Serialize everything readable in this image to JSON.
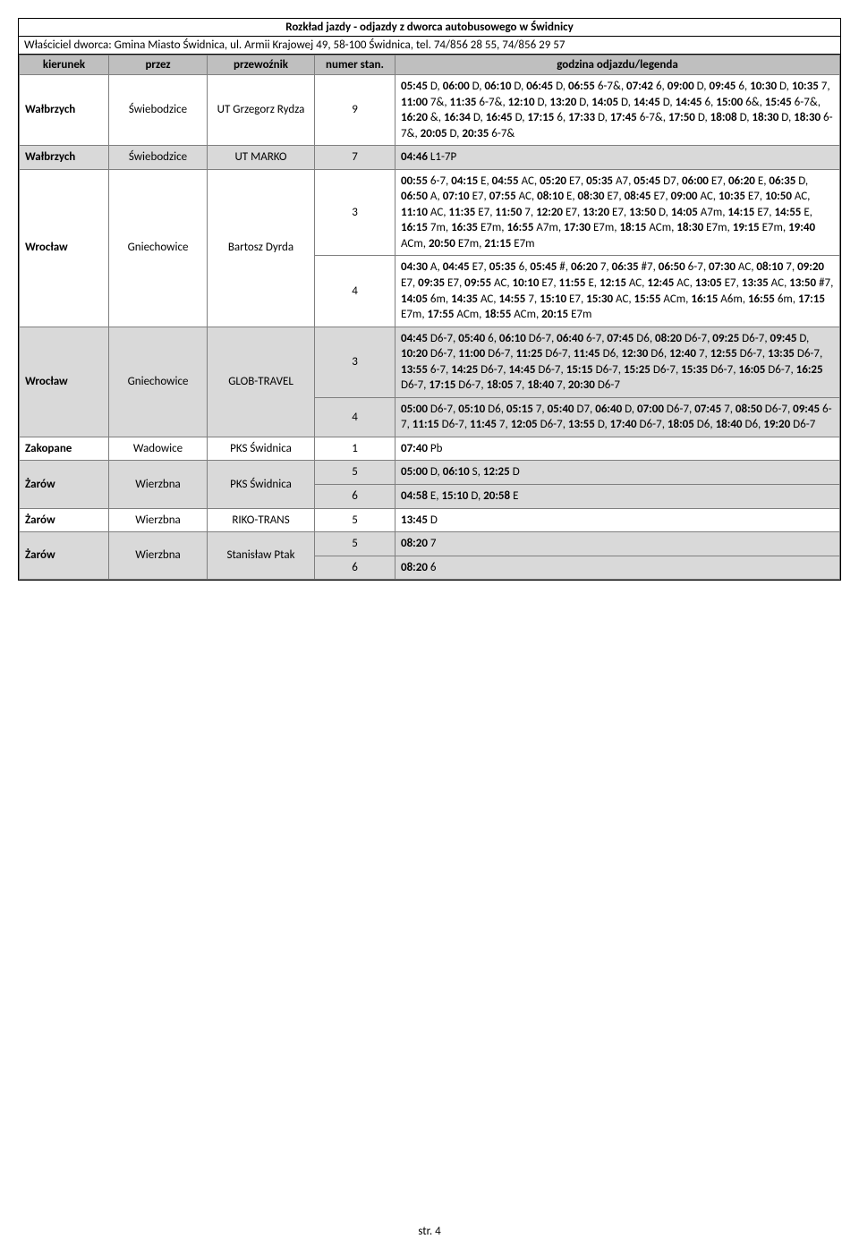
{
  "title": "Rozkład jazdy - odjazdy z dworca autobusowego w Świdnicy",
  "subtitle": "Właściciel dworca: Gmina Miasto Świdnica, ul. Armii Krajowej 49, 58-100 Świdnica, tel. 74/856 28 55, 74/856 29 57",
  "headers": {
    "c1": "kierunek",
    "c2": "przez",
    "c3": "przewoźnik",
    "c4": "numer stan.",
    "c5": "godzina odjazdu/legenda"
  },
  "rows": [
    {
      "shaded": false,
      "kierunek": "Wałbrzych",
      "przez": "Świebodzice",
      "przewoznik": "UT Grzegorz Rydza",
      "stan": "9",
      "times": [
        {
          "t": "05:45",
          "l": " D, "
        },
        {
          "t": "06:00",
          "l": " D, "
        },
        {
          "t": "06:10",
          "l": " D, "
        },
        {
          "t": "06:45",
          "l": " D, "
        },
        {
          "t": "06:55",
          "l": " 6-7&, "
        },
        {
          "t": "07:42",
          "l": " 6, "
        },
        {
          "t": "09:00",
          "l": " D, "
        },
        {
          "t": "09:45",
          "l": " 6, "
        },
        {
          "t": "10:30",
          "l": " D, "
        },
        {
          "t": "10:35",
          "l": " 7, "
        },
        {
          "t": "11:00",
          "l": " 7&, "
        },
        {
          "t": "11:35",
          "l": " 6-7&, "
        },
        {
          "t": "12:10",
          "l": " D, "
        },
        {
          "t": "13:20",
          "l": " D, "
        },
        {
          "t": "14:05",
          "l": " D, "
        },
        {
          "t": "14:45",
          "l": " D, "
        },
        {
          "t": "14:45",
          "l": " 6, "
        },
        {
          "t": "15:00",
          "l": " 6&, "
        },
        {
          "t": "15:45",
          "l": " 6-7&, "
        },
        {
          "t": "16:20",
          "l": " &, "
        },
        {
          "t": "16:34",
          "l": " D, "
        },
        {
          "t": "16:45",
          "l": " D, "
        },
        {
          "t": "17:15",
          "l": " 6, "
        },
        {
          "t": "17:33",
          "l": " D, "
        },
        {
          "t": "17:45",
          "l": " 6-7&, "
        },
        {
          "t": "17:50",
          "l": " D, "
        },
        {
          "t": "18:08",
          "l": " D, "
        },
        {
          "t": "18:30",
          "l": " D, "
        },
        {
          "t": "18:30",
          "l": " 6-7&, "
        },
        {
          "t": "20:05",
          "l": " D, "
        },
        {
          "t": "20:35",
          "l": " 6-7&"
        }
      ]
    },
    {
      "shaded": true,
      "kierunek": "Wałbrzych",
      "przez": "Świebodzice",
      "przewoznik": "UT MARKO",
      "stan": "7",
      "times": [
        {
          "t": "04:46",
          "l": " L1-7P"
        }
      ]
    },
    {
      "shaded": false,
      "groupStart": true,
      "groupRows": 2,
      "kierunek": "Wrocław",
      "przez": "Gniechowice",
      "przewoznik": "Bartosz Dyrda",
      "stan": "3",
      "times": [
        {
          "t": "00:55",
          "l": " 6-7, "
        },
        {
          "t": "04:15",
          "l": " E, "
        },
        {
          "t": "04:55",
          "l": " AC, "
        },
        {
          "t": "05:20",
          "l": " E7, "
        },
        {
          "t": "05:35",
          "l": " A7, "
        },
        {
          "t": "05:45",
          "l": " D7, "
        },
        {
          "t": "06:00",
          "l": " E7, "
        },
        {
          "t": "06:20",
          "l": " E, "
        },
        {
          "t": "06:35",
          "l": " D, "
        },
        {
          "t": "06:50",
          "l": " A, "
        },
        {
          "t": "07:10",
          "l": " E7, "
        },
        {
          "t": "07:55",
          "l": " AC, "
        },
        {
          "t": "08:10",
          "l": " E, "
        },
        {
          "t": "08:30",
          "l": " E7, "
        },
        {
          "t": "08:45",
          "l": " E7, "
        },
        {
          "t": "09:00",
          "l": " AC, "
        },
        {
          "t": "10:35",
          "l": " E7, "
        },
        {
          "t": "10:50",
          "l": " AC, "
        },
        {
          "t": "11:10",
          "l": " AC, "
        },
        {
          "t": "11:35",
          "l": " E7, "
        },
        {
          "t": "11:50",
          "l": " 7, "
        },
        {
          "t": "12:20",
          "l": " E7, "
        },
        {
          "t": "13:20",
          "l": " E7, "
        },
        {
          "t": "13:50",
          "l": " D, "
        },
        {
          "t": "14:05",
          "l": " A7m, "
        },
        {
          "t": "14:15",
          "l": " E7, "
        },
        {
          "t": "14:55",
          "l": " E, "
        },
        {
          "t": "16:15",
          "l": " 7m, "
        },
        {
          "t": "16:35",
          "l": " E7m, "
        },
        {
          "t": "16:55",
          "l": " A7m, "
        },
        {
          "t": "17:30",
          "l": " E7m, "
        },
        {
          "t": "18:15",
          "l": " ACm, "
        },
        {
          "t": "18:30",
          "l": " E7m, "
        },
        {
          "t": "19:15",
          "l": " E7m, "
        },
        {
          "t": "19:40",
          "l": " ACm, "
        },
        {
          "t": "20:50",
          "l": " E7m, "
        },
        {
          "t": "21:15",
          "l": " E7m"
        }
      ]
    },
    {
      "shaded": false,
      "groupStart": false,
      "stan": "4",
      "times": [
        {
          "t": "04:30",
          "l": " A, "
        },
        {
          "t": "04:45",
          "l": " E7, "
        },
        {
          "t": "05:35",
          "l": " 6, "
        },
        {
          "t": "05:45",
          "l": " #, "
        },
        {
          "t": "06:20",
          "l": " 7, "
        },
        {
          "t": "06:35",
          "l": " #7, "
        },
        {
          "t": "06:50",
          "l": " 6-7, "
        },
        {
          "t": "07:30",
          "l": " AC, "
        },
        {
          "t": "08:10",
          "l": " 7, "
        },
        {
          "t": "09:20",
          "l": " E7, "
        },
        {
          "t": "09:35",
          "l": " E7, "
        },
        {
          "t": "09:55",
          "l": " AC, "
        },
        {
          "t": "10:10",
          "l": " E7, "
        },
        {
          "t": "11:55",
          "l": " E, "
        },
        {
          "t": "12:15",
          "l": " AC, "
        },
        {
          "t": "12:45",
          "l": " AC, "
        },
        {
          "t": "13:05",
          "l": " E7, "
        },
        {
          "t": "13:35",
          "l": " AC, "
        },
        {
          "t": "13:50",
          "l": " #7, "
        },
        {
          "t": "14:05",
          "l": " 6m, "
        },
        {
          "t": "14:35",
          "l": " AC, "
        },
        {
          "t": "14:55",
          "l": " 7, "
        },
        {
          "t": "15:10",
          "l": " E7, "
        },
        {
          "t": "15:30",
          "l": " AC, "
        },
        {
          "t": "15:55",
          "l": " ACm, "
        },
        {
          "t": "16:15",
          "l": " A6m, "
        },
        {
          "t": "16:55",
          "l": " 6m, "
        },
        {
          "t": "17:15",
          "l": " E7m, "
        },
        {
          "t": "17:55",
          "l": " ACm, "
        },
        {
          "t": "18:55",
          "l": " ACm, "
        },
        {
          "t": "20:15",
          "l": " E7m"
        }
      ]
    },
    {
      "shaded": true,
      "groupStart": true,
      "groupRows": 2,
      "kierunek": "Wrocław",
      "przez": "Gniechowice",
      "przewoznik": "GLOB-TRAVEL",
      "stan": "3",
      "times": [
        {
          "t": "04:45",
          "l": " D6-7, "
        },
        {
          "t": "05:40",
          "l": " 6, "
        },
        {
          "t": "06:10",
          "l": " D6-7, "
        },
        {
          "t": "06:40",
          "l": " 6-7, "
        },
        {
          "t": "07:45",
          "l": " D6, "
        },
        {
          "t": "08:20",
          "l": " D6-7, "
        },
        {
          "t": "09:25",
          "l": " D6-7, "
        },
        {
          "t": "09:45",
          "l": " D, "
        },
        {
          "t": "10:20",
          "l": " D6-7, "
        },
        {
          "t": "11:00",
          "l": " D6-7, "
        },
        {
          "t": "11:25",
          "l": " D6-7, "
        },
        {
          "t": "11:45",
          "l": " D6, "
        },
        {
          "t": "12:30",
          "l": " D6, "
        },
        {
          "t": "12:40",
          "l": " 7, "
        },
        {
          "t": "12:55",
          "l": " D6-7, "
        },
        {
          "t": "13:35",
          "l": " D6-7, "
        },
        {
          "t": "13:55",
          "l": " 6-7, "
        },
        {
          "t": "14:25",
          "l": " D6-7, "
        },
        {
          "t": "14:45",
          "l": " D6-7, "
        },
        {
          "t": "15:15",
          "l": " D6-7, "
        },
        {
          "t": "15:25",
          "l": " D6-7, "
        },
        {
          "t": "15:35",
          "l": " D6-7, "
        },
        {
          "t": "16:05",
          "l": " D6-7, "
        },
        {
          "t": "16:25",
          "l": " D6-7, "
        },
        {
          "t": "17:15",
          "l": " D6-7, "
        },
        {
          "t": "18:05",
          "l": " 7, "
        },
        {
          "t": "18:40",
          "l": " 7, "
        },
        {
          "t": "20:30",
          "l": " D6-7"
        }
      ]
    },
    {
      "shaded": true,
      "groupStart": false,
      "stan": "4",
      "times": [
        {
          "t": "05:00",
          "l": " D6-7, "
        },
        {
          "t": "05:10",
          "l": " D6, "
        },
        {
          "t": "05:15",
          "l": " 7, "
        },
        {
          "t": "05:40",
          "l": " D7, "
        },
        {
          "t": "06:40",
          "l": " D, "
        },
        {
          "t": "07:00",
          "l": " D6-7, "
        },
        {
          "t": "07:45",
          "l": " 7, "
        },
        {
          "t": "08:50",
          "l": " D6-7, "
        },
        {
          "t": "09:45",
          "l": " 6-7, "
        },
        {
          "t": "11:15",
          "l": " D6-7, "
        },
        {
          "t": "11:45",
          "l": " 7, "
        },
        {
          "t": "12:05",
          "l": " D6-7, "
        },
        {
          "t": "13:55",
          "l": " D, "
        },
        {
          "t": "17:40",
          "l": " D6-7, "
        },
        {
          "t": "18:05",
          "l": " D6, "
        },
        {
          "t": "18:40",
          "l": " D6, "
        },
        {
          "t": "19:20",
          "l": " D6-7"
        }
      ]
    },
    {
      "shaded": false,
      "kierunek": "Zakopane",
      "przez": "Wadowice",
      "przewoznik": "PKS Świdnica",
      "stan": "1",
      "times": [
        {
          "t": "07:40",
          "l": " Pb"
        }
      ]
    },
    {
      "shaded": true,
      "groupStart": true,
      "groupRows": 2,
      "kierunek": "Żarów",
      "przez": "Wierzbna",
      "przewoznik": "PKS Świdnica",
      "stan": "5",
      "times": [
        {
          "t": "05:00",
          "l": " D, "
        },
        {
          "t": "06:10",
          "l": " S, "
        },
        {
          "t": "12:25",
          "l": " D"
        }
      ]
    },
    {
      "shaded": true,
      "groupStart": false,
      "stan": "6",
      "times": [
        {
          "t": "04:58",
          "l": " E, "
        },
        {
          "t": "15:10",
          "l": " D, "
        },
        {
          "t": "20:58",
          "l": " E"
        }
      ]
    },
    {
      "shaded": false,
      "kierunek": "Żarów",
      "przez": "Wierzbna",
      "przewoznik": "RIKO-TRANS",
      "stan": "5",
      "times": [
        {
          "t": "13:45",
          "l": " D"
        }
      ]
    },
    {
      "shaded": true,
      "groupStart": true,
      "groupRows": 2,
      "kierunek": "Żarów",
      "przez": "Wierzbna",
      "przewoznik": "Stanisław Ptak",
      "stan": "5",
      "times": [
        {
          "t": "08:20",
          "l": " 7"
        }
      ]
    },
    {
      "shaded": true,
      "groupStart": false,
      "stan": "6",
      "times": [
        {
          "t": "08:20",
          "l": " 6"
        }
      ]
    }
  ],
  "footer": "str. 4"
}
